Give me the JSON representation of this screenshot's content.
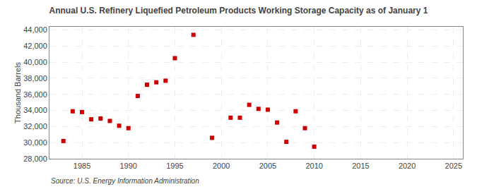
{
  "chart_data": {
    "type": "scatter",
    "title": "Annual U.S. Refinery Liquefied Petroleum Products Working Storage Capacity as of January 1",
    "ylabel": "Thousand Barrels",
    "annotations": [
      "Source: U.S. Energy Information Administration"
    ],
    "x": [
      1983,
      1984,
      1985,
      1986,
      1987,
      1988,
      1989,
      1990,
      1991,
      1992,
      1993,
      1994,
      1995,
      1997,
      1999,
      2001,
      2002,
      2003,
      2004,
      2005,
      2006,
      2007,
      2008,
      2009,
      2010
    ],
    "values": [
      30200,
      33900,
      33800,
      32900,
      33000,
      32700,
      32100,
      31800,
      35800,
      37200,
      37500,
      37700,
      40500,
      43400,
      30600,
      33100,
      33100,
      34700,
      34200,
      34100,
      32500,
      30100,
      33900,
      31800,
      29500
    ],
    "color": "#cc0000",
    "marker": "square",
    "xlim": [
      1981.5,
      2026
    ],
    "ylim": [
      28000,
      44400
    ],
    "xticks": [
      1985,
      1990,
      1995,
      2000,
      2005,
      2010,
      2015,
      2020,
      2025
    ],
    "yticks": [
      {
        "value": 28000,
        "label": "28,000"
      },
      {
        "value": 30000,
        "label": "30,000"
      },
      {
        "value": 32000,
        "label": "32,000"
      },
      {
        "value": 34000,
        "label": "34,000"
      },
      {
        "value": 36000,
        "label": "36,000"
      },
      {
        "value": 38000,
        "label": "38,000"
      },
      {
        "value": 40000,
        "label": "40,000"
      },
      {
        "value": 42000,
        "label": "42,000"
      },
      {
        "value": 44000,
        "label": "44,000"
      }
    ],
    "grid": true
  }
}
